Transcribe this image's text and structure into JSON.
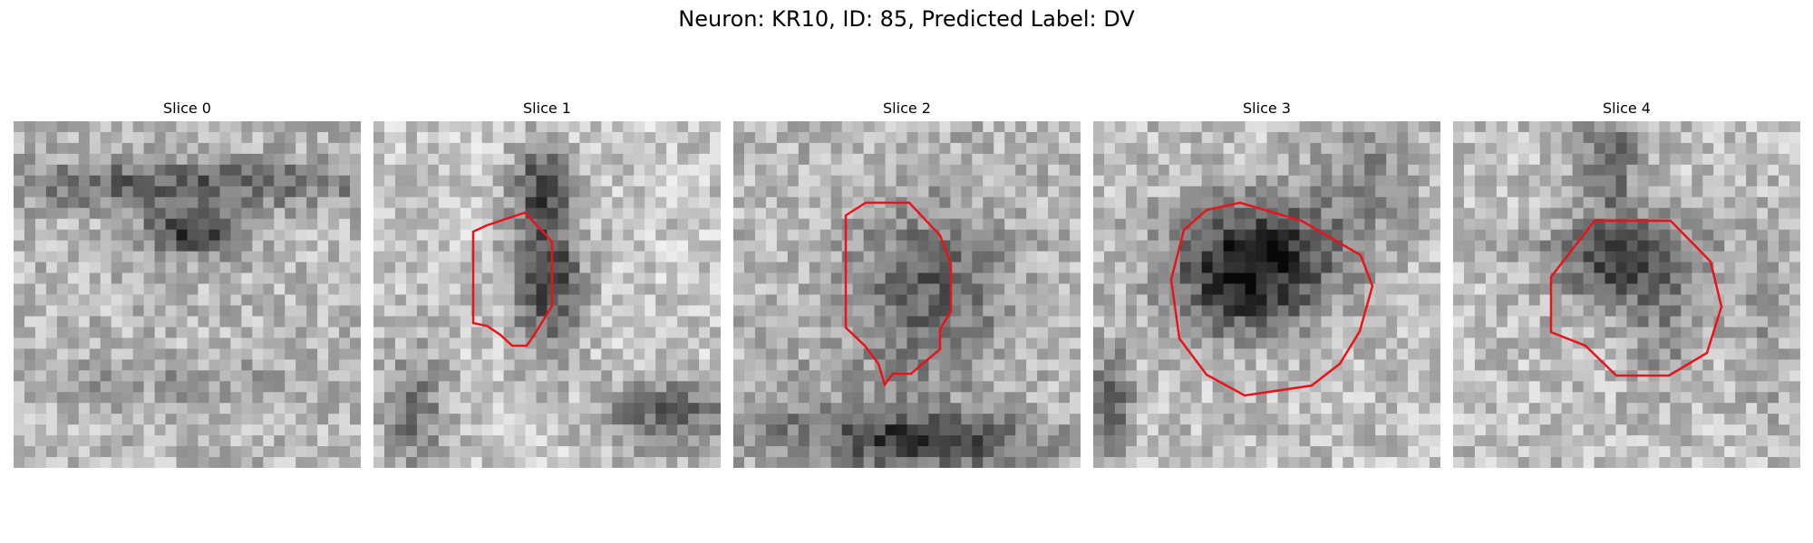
{
  "figure": {
    "title": "Neuron: KR10, ID: 85, Predicted Label: DV"
  },
  "panels": [
    {
      "title": "Slice 0",
      "contour": "none",
      "dark_region": "horizontal dark band across upper middle"
    },
    {
      "title": "Slice 1",
      "contour": "red outline around vertical dark cell body",
      "dark_region": "centered vertical dark blob"
    },
    {
      "title": "Slice 2",
      "contour": "red outline around mottled dark cell body",
      "dark_region": "central mottled region, dark patch at bottom"
    },
    {
      "title": "Slice 3",
      "contour": "red outline around round dark cell body",
      "dark_region": "large dark round region"
    },
    {
      "title": "Slice 4",
      "contour": "red outline around dark cell body",
      "dark_region": "dark upper part of cell"
    }
  ],
  "colors": {
    "contour": "#e8141a",
    "background": "#ffffff",
    "image_colormap": "grayscale"
  }
}
